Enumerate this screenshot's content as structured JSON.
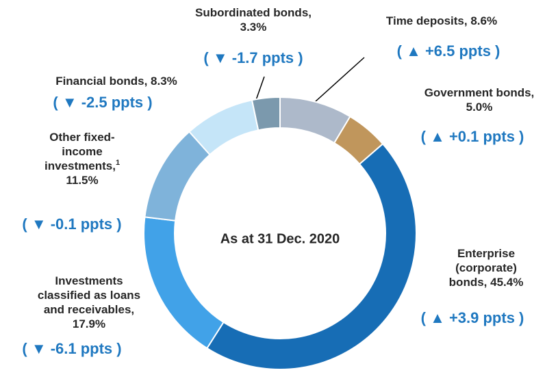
{
  "chart_data": {
    "type": "donut",
    "center_label": "As at 31 Dec. 2020",
    "categories": [
      "Time deposits,",
      "Government bonds,",
      "Enterprise (corporate) bonds,",
      "Investments classified as loans and receivables,",
      "Other fixed-income investments,",
      "Financial bonds,",
      "Subordinated bonds,"
    ],
    "category_notes": [
      null,
      null,
      null,
      null,
      "1",
      null,
      null
    ],
    "values": [
      8.6,
      5.0,
      45.4,
      17.9,
      11.5,
      8.3,
      3.3
    ],
    "value_labels": [
      "8.6%",
      "5.0%",
      "45.4%",
      "17.9%",
      "11.5%",
      "8.3%",
      "3.3%"
    ],
    "colors": [
      "#adb9ca",
      "#c0965c",
      "#176db5",
      "#41a2e8",
      "#7fb3da",
      "#c5e5f8",
      "#7b99ad"
    ],
    "changes": [
      6.5,
      0.1,
      3.9,
      -6.1,
      -0.1,
      -2.5,
      -1.7
    ],
    "change_labels": [
      "( ▲ +6.5 ppts )",
      "( ▲ +0.1 ppts )",
      "( ▲ +3.9 ppts )",
      "( ▼ -6.1 ppts )",
      "( ▼ -0.1 ppts )",
      "( ▼ -2.5 ppts )",
      "( ▼ -1.7 ppts )"
    ]
  }
}
